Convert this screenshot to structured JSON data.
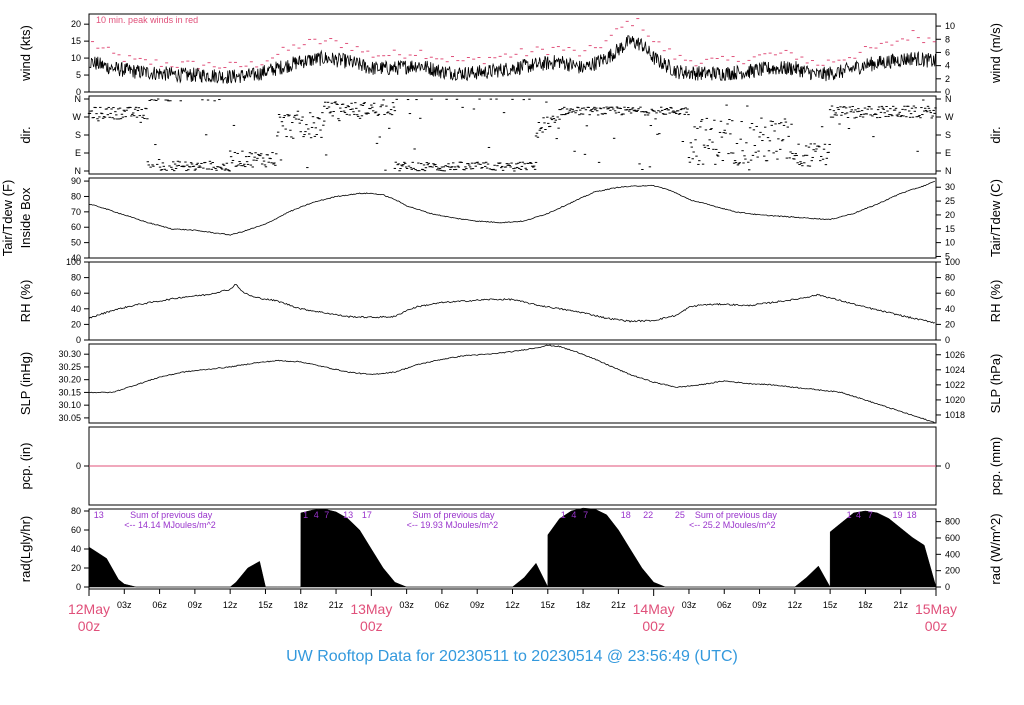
{
  "footer": {
    "title": "UW Rooftop Data for 20230511  to  20230514 @ 23:56:49  (UTC)"
  },
  "colors": {
    "accent_red": "#e0507a",
    "footer_blue": "#3399dd",
    "purple": "#9933cc"
  },
  "x_axis": {
    "range_hours": [
      0,
      72
    ],
    "minor_ticks": [
      {
        "h": 3,
        "label": "03z"
      },
      {
        "h": 6,
        "label": "06z"
      },
      {
        "h": 9,
        "label": "09z"
      },
      {
        "h": 12,
        "label": "12z"
      },
      {
        "h": 15,
        "label": "15z"
      },
      {
        "h": 18,
        "label": "18z"
      },
      {
        "h": 21,
        "label": "21z"
      },
      {
        "h": 27,
        "label": "03z"
      },
      {
        "h": 30,
        "label": "06z"
      },
      {
        "h": 33,
        "label": "09z"
      },
      {
        "h": 36,
        "label": "12z"
      },
      {
        "h": 39,
        "label": "15z"
      },
      {
        "h": 42,
        "label": "18z"
      },
      {
        "h": 45,
        "label": "21z"
      },
      {
        "h": 51,
        "label": "03z"
      },
      {
        "h": 54,
        "label": "06z"
      },
      {
        "h": 57,
        "label": "09z"
      },
      {
        "h": 60,
        "label": "12z"
      },
      {
        "h": 63,
        "label": "15z"
      },
      {
        "h": 66,
        "label": "18z"
      },
      {
        "h": 69,
        "label": "21z"
      }
    ],
    "major_ticks": [
      {
        "h": 0,
        "date": "12May",
        "hour": "00z"
      },
      {
        "h": 24,
        "date": "13May",
        "hour": "00z"
      },
      {
        "h": 48,
        "date": "14May",
        "hour": "00z"
      },
      {
        "h": 72,
        "date": "15May",
        "hour": "00z"
      }
    ]
  },
  "chart_data": [
    {
      "type": "line",
      "panel": "wind",
      "ylabel_left": "wind (kts)",
      "ylabel_right": "wind (m/s)",
      "annotation": "10 min. peak winds in red",
      "ylim": [
        0,
        23
      ],
      "yticks_left": [
        0,
        5,
        10,
        15,
        20
      ],
      "yticks_right": [
        0,
        2,
        4,
        6,
        8,
        10
      ],
      "series": [
        {
          "color": "#000000",
          "x": [
            0,
            2,
            4,
            6,
            8,
            10,
            12,
            14,
            16,
            18,
            20,
            22,
            24,
            26,
            28,
            30,
            32,
            34,
            36,
            38,
            40,
            42,
            44,
            46,
            47,
            48,
            50,
            52,
            54,
            56,
            58,
            60,
            62,
            64,
            66,
            68,
            70,
            72
          ],
          "y": [
            9,
            7,
            6,
            5.5,
            5,
            5,
            4.5,
            5,
            7,
            9,
            10,
            9,
            7,
            7,
            8,
            6,
            5.5,
            6,
            7,
            8,
            9,
            7,
            10,
            15,
            14,
            10,
            6,
            5.5,
            5.5,
            6,
            7,
            7,
            5,
            6,
            8,
            9,
            10,
            9
          ]
        },
        {
          "color": "#e0507a",
          "style": "dashes",
          "x": [
            0,
            2,
            4,
            6,
            8,
            10,
            12,
            14,
            16,
            18,
            20,
            22,
            24,
            26,
            28,
            30,
            32,
            34,
            36,
            38,
            40,
            42,
            44,
            46,
            47,
            48,
            50,
            52,
            54,
            56,
            58,
            60,
            62,
            64,
            66,
            68,
            70,
            72
          ],
          "y": [
            15,
            11,
            9,
            8.5,
            8,
            8,
            7.5,
            8,
            11,
            14,
            15,
            14,
            11,
            11,
            12,
            10,
            9,
            10,
            11,
            12,
            13,
            11,
            15,
            21,
            20,
            15,
            10,
            9,
            9,
            10,
            11,
            11,
            8,
            10,
            12,
            14,
            17,
            15
          ]
        }
      ]
    },
    {
      "type": "scatter",
      "panel": "direction",
      "ylabel_left": "dir.",
      "ylabel_right": "dir.",
      "ylim": [
        0,
        360
      ],
      "ytick_labels": [
        "N",
        "E",
        "S",
        "W",
        "N"
      ],
      "segments": [
        {
          "x0": 0,
          "x1": 5,
          "center": 290,
          "spread": 30
        },
        {
          "x0": 5,
          "x1": 12,
          "center": 20,
          "spread": 30
        },
        {
          "x0": 12,
          "x1": 16,
          "center": 60,
          "spread": 40
        },
        {
          "x0": 16,
          "x1": 20,
          "center": 230,
          "spread": 70
        },
        {
          "x0": 20,
          "x1": 26,
          "center": 310,
          "spread": 35
        },
        {
          "x0": 26,
          "x1": 38,
          "center": 20,
          "spread": 25
        },
        {
          "x0": 38,
          "x1": 40,
          "center": 220,
          "spread": 60
        },
        {
          "x0": 40,
          "x1": 51,
          "center": 300,
          "spread": 20
        },
        {
          "x0": 51,
          "x1": 60,
          "center": 150,
          "spread": 120
        },
        {
          "x0": 60,
          "x1": 63,
          "center": 80,
          "spread": 60
        },
        {
          "x0": 63,
          "x1": 72,
          "center": 295,
          "spread": 30
        }
      ]
    },
    {
      "type": "line",
      "panel": "temperature",
      "ylabel_left": "Tair/Tdew (F)",
      "ylabel_left2": "Inside Box",
      "ylabel_right": "Tair/Tdew (C)",
      "ylim": [
        40,
        92
      ],
      "yticks_left": [
        40,
        50,
        60,
        70,
        80,
        90
      ],
      "yticks_right": [
        5,
        10,
        15,
        20,
        25,
        30
      ],
      "series": [
        {
          "color": "#000000",
          "x": [
            0,
            1,
            3,
            5,
            7,
            9,
            11,
            12,
            13,
            15,
            17,
            19,
            21,
            23,
            24,
            25,
            26,
            27,
            29,
            31,
            33,
            35,
            37,
            39,
            41,
            43,
            45,
            47,
            48,
            49,
            50,
            51,
            53,
            55,
            57,
            59,
            61,
            63,
            65,
            67,
            69,
            71,
            72
          ],
          "y": [
            75,
            73,
            68,
            63,
            59,
            58,
            56,
            55,
            57,
            62,
            70,
            76,
            80,
            82,
            82,
            81,
            78,
            74,
            69,
            66,
            64,
            63,
            64,
            69,
            76,
            83,
            86,
            87,
            87,
            85,
            82,
            78,
            74,
            70,
            68,
            67,
            66,
            65,
            69,
            75,
            82,
            87,
            90
          ]
        }
      ]
    },
    {
      "type": "line",
      "panel": "humidity",
      "ylabel_left": "RH (%)",
      "ylabel_right": "RH (%)",
      "ylim": [
        0,
        100
      ],
      "yticks": [
        0,
        20,
        40,
        60,
        80,
        100
      ],
      "series": [
        {
          "color": "#000000",
          "x": [
            0,
            2,
            4,
            6,
            8,
            10,
            12,
            12.5,
            13,
            14,
            16,
            18,
            20,
            22,
            24,
            26,
            27,
            28,
            30,
            32,
            34,
            36,
            38,
            40,
            42,
            44,
            46,
            48,
            50,
            51,
            52,
            54,
            56,
            58,
            60,
            62,
            64,
            66,
            68,
            70,
            72
          ],
          "y": [
            28,
            38,
            45,
            50,
            55,
            58,
            65,
            72,
            62,
            55,
            50,
            40,
            35,
            30,
            29,
            30,
            38,
            43,
            48,
            50,
            52,
            52,
            45,
            40,
            35,
            28,
            24,
            25,
            32,
            42,
            45,
            46,
            44,
            48,
            52,
            58,
            50,
            42,
            35,
            28,
            22
          ]
        }
      ]
    },
    {
      "type": "line",
      "panel": "pressure",
      "ylabel_left": "SLP (inHg)",
      "ylabel_right": "SLP (hPa)",
      "ylim": [
        30.03,
        30.34
      ],
      "yticks_left": [
        30.05,
        30.1,
        30.15,
        30.2,
        30.25,
        30.3
      ],
      "yticks_right": [
        1018,
        1020,
        1022,
        1024,
        1026
      ],
      "series": [
        {
          "color": "#000000",
          "x": [
            0,
            2,
            4,
            6,
            8,
            10,
            12,
            14,
            16,
            18,
            20,
            22,
            24,
            26,
            28,
            30,
            32,
            34,
            36,
            38,
            39,
            40,
            42,
            44,
            46,
            48,
            50,
            52,
            54,
            56,
            58,
            60,
            62,
            64,
            66,
            68,
            70,
            72
          ],
          "y": [
            30.15,
            30.15,
            30.18,
            30.21,
            30.23,
            30.24,
            30.25,
            30.265,
            30.275,
            30.27,
            30.25,
            30.23,
            30.22,
            30.23,
            30.26,
            30.28,
            30.295,
            30.3,
            30.31,
            30.325,
            30.335,
            30.33,
            30.3,
            30.26,
            30.22,
            30.19,
            30.17,
            30.18,
            30.195,
            30.185,
            30.18,
            30.17,
            30.16,
            30.15,
            30.12,
            30.09,
            30.06,
            30.03
          ]
        }
      ]
    },
    {
      "type": "line",
      "panel": "precipitation",
      "ylabel_left": "pcp. (in)",
      "ylabel_right": "pcp. (mm)",
      "yticks_left": [
        0
      ],
      "yticks_right": [
        0
      ],
      "series": [
        {
          "color": "#e0507a",
          "x": [
            0,
            72
          ],
          "y": [
            0,
            0
          ]
        }
      ]
    },
    {
      "type": "area",
      "panel": "radiation",
      "ylabel_left": "rad(Lgly/hr)",
      "ylabel_right": "rad (W/m^2)",
      "ylim": [
        0,
        80
      ],
      "yticks_left": [
        0,
        20,
        40,
        60,
        80
      ],
      "yticks_right": [
        0,
        200,
        400,
        600,
        800
      ],
      "series": [
        {
          "color": "#000000",
          "x": [
            0,
            0.5,
            1.5,
            2.5,
            3,
            4,
            12,
            12.5,
            13.5,
            14.5,
            15,
            16,
            16.5,
            18,
            18.01,
            19,
            20,
            21,
            22,
            23,
            24,
            25,
            26,
            27,
            36,
            37,
            38,
            39,
            39.01,
            40,
            41,
            42,
            43,
            44,
            45,
            46,
            47,
            48,
            49,
            50,
            51,
            60,
            61,
            62,
            63,
            63.01,
            64,
            65,
            66,
            67,
            68,
            69,
            70,
            71,
            72
          ],
          "y": [
            42,
            38,
            30,
            8,
            3,
            0,
            0,
            5,
            20,
            27,
            0,
            0,
            0,
            0,
            78,
            81,
            82,
            79,
            72,
            60,
            40,
            20,
            5,
            0,
            0,
            10,
            25,
            0,
            55,
            72,
            80,
            83,
            82,
            76,
            60,
            40,
            20,
            5,
            0,
            0,
            0,
            0,
            10,
            22,
            0,
            58,
            68,
            78,
            80,
            78,
            72,
            62,
            52,
            44,
            0
          ]
        }
      ],
      "annotations": [
        {
          "h": 0.4,
          "text": "13"
        },
        {
          "h": 3.5,
          "text": "Sum of previous day"
        },
        {
          "h": 3.0,
          "text": "<-- 14.14 MJoules/m^2",
          "row": 2
        },
        {
          "h": 18.2,
          "text": "1"
        },
        {
          "h": 19.1,
          "text": "4"
        },
        {
          "h": 20.0,
          "text": "7"
        },
        {
          "h": 21.6,
          "text": "13"
        },
        {
          "h": 23.2,
          "text": "17"
        },
        {
          "h": 27.5,
          "text": "Sum of previous day"
        },
        {
          "h": 27.0,
          "text": "<-- 19.93 MJoules/m^2",
          "row": 2
        },
        {
          "h": 40.1,
          "text": "1"
        },
        {
          "h": 41.0,
          "text": "4"
        },
        {
          "h": 42.0,
          "text": "7"
        },
        {
          "h": 45.2,
          "text": "18"
        },
        {
          "h": 47.1,
          "text": "22"
        },
        {
          "h": 49.8,
          "text": "25"
        },
        {
          "h": 51.5,
          "text": "Sum of previous day"
        },
        {
          "h": 51.0,
          "text": "<-- 25.2 MJoules/m^2",
          "row": 2
        },
        {
          "h": 64.4,
          "text": "1"
        },
        {
          "h": 65.2,
          "text": "4"
        },
        {
          "h": 66.2,
          "text": "7"
        },
        {
          "h": 68.3,
          "text": "19"
        },
        {
          "h": 69.5,
          "text": "18"
        }
      ]
    }
  ]
}
